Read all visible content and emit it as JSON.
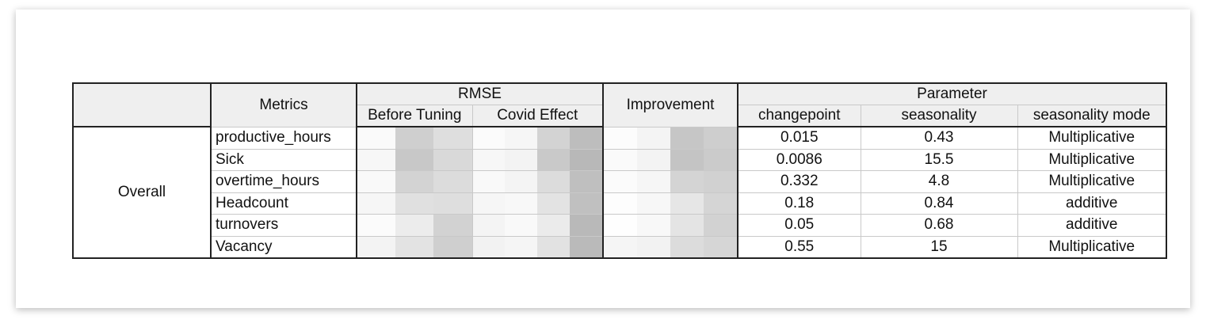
{
  "headers": {
    "metrics": "Metrics",
    "rmse": "RMSE",
    "before_tuning": "Before Tuning",
    "covid_effect": "Covid Effect",
    "improvement": "Improvement",
    "parameter": "Parameter",
    "changepoint": "changepoint",
    "seasonality": "seasonality",
    "seasonality_mode": "seasonality mode"
  },
  "group_label": "Overall",
  "rows": [
    {
      "metric": "productive_hours",
      "changepoint": "0.015",
      "seasonality": "0.43",
      "mode": "Multiplicative"
    },
    {
      "metric": "Sick",
      "changepoint": "0.0086",
      "seasonality": "15.5",
      "mode": "Multiplicative"
    },
    {
      "metric": "overtime_hours",
      "changepoint": "0.332",
      "seasonality": "4.8",
      "mode": "Multiplicative"
    },
    {
      "metric": "Headcount",
      "changepoint": "0.18",
      "seasonality": "0.84",
      "mode": "additive"
    },
    {
      "metric": "turnovers",
      "changepoint": "0.05",
      "seasonality": "0.68",
      "mode": "additive"
    },
    {
      "metric": "Vacancy",
      "changepoint": "0.55",
      "seasonality": "15",
      "mode": "Multiplicative"
    }
  ],
  "redacted_colors": {
    "before": [
      [
        "#fafafa",
        "#cfcfcf",
        "#dedede"
      ],
      [
        "#f7f7f7",
        "#c8c8c8",
        "#d9d9d9"
      ],
      [
        "#f9f9f9",
        "#d3d3d3",
        "#dcdcdc"
      ],
      [
        "#f6f6f6",
        "#e0e0e0",
        "#dedede"
      ],
      [
        "#fbfbfb",
        "#ececec",
        "#d2d2d2"
      ],
      [
        "#f3f3f3",
        "#e3e3e3",
        "#cfcfcf"
      ]
    ],
    "covid": [
      [
        "#fbfbfb",
        "#f6f6f6",
        "#d3d3d3",
        "#bdbdbd"
      ],
      [
        "#f7f7f7",
        "#f3f3f3",
        "#c9c9c9",
        "#b8b8b8"
      ],
      [
        "#f9f9f9",
        "#f4f4f4",
        "#dcdcdc",
        "#bfbfbf"
      ],
      [
        "#f6f6f6",
        "#f8f8f8",
        "#e3e3e3",
        "#c0c0c0"
      ],
      [
        "#f4f4f4",
        "#f9f9f9",
        "#ebebeb",
        "#b9b9b9"
      ],
      [
        "#f2f2f2",
        "#f5f5f5",
        "#e2e2e2",
        "#bababa"
      ]
    ],
    "improvement": [
      [
        "#fcfcfc",
        "#f4f4f4",
        "#c6c6c6",
        "#cecece"
      ],
      [
        "#fafafa",
        "#f3f3f3",
        "#c4c4c4",
        "#cbcbcb"
      ],
      [
        "#fbfbfb",
        "#f6f6f6",
        "#d4d4d4",
        "#d1d1d1"
      ],
      [
        "#fdfdfd",
        "#f7f7f7",
        "#e6e6e6",
        "#d5d5d5"
      ],
      [
        "#fefefe",
        "#f8f8f8",
        "#e4e4e4",
        "#d2d2d2"
      ],
      [
        "#f5f5f5",
        "#f2f2f2",
        "#dcdcdc",
        "#d6d6d6"
      ]
    ]
  }
}
